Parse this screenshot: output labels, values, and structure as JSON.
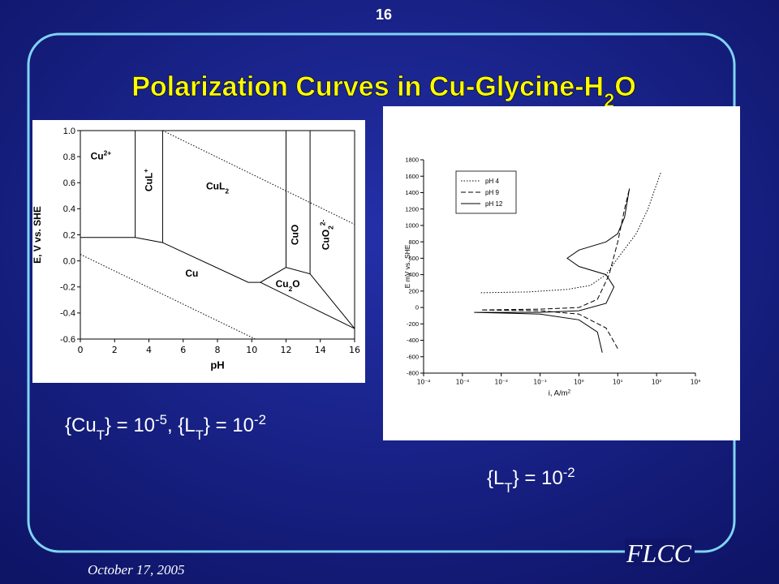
{
  "slide_number": "16",
  "title": [
    {
      "t": "Polarization Curves in Cu-Glycine-H"
    },
    {
      "sub": "2"
    },
    {
      "t": "O"
    }
  ],
  "caption_left": [
    {
      "t": "{Cu"
    },
    {
      "sub": "T"
    },
    {
      "t": "} = 10"
    },
    {
      "sup": "-5"
    },
    {
      "t": ", {L"
    },
    {
      "sub": "T"
    },
    {
      "t": "} = 10"
    },
    {
      "sup": "-2"
    }
  ],
  "caption_right": [
    {
      "t": "{L"
    },
    {
      "sub": "T"
    },
    {
      "t": "} = 10"
    },
    {
      "sup": "-2"
    }
  ],
  "footer": {
    "date": "October 17, 2005",
    "org": "FLCC"
  },
  "chart_data": [
    {
      "type": "phase-diagram",
      "xlabel": "pH",
      "ylabel": "E, V  vs. SHE",
      "xlim": [
        0,
        16
      ],
      "xticks": [
        0,
        2,
        4,
        6,
        8,
        10,
        12,
        14,
        16
      ],
      "ylim": [
        -0.6,
        1.0
      ],
      "yticks": [
        {
          "value": 1.0,
          "label": "1.0"
        },
        0.8,
        0.6,
        0.4,
        0.2,
        {
          "value": 0,
          "label": "0.0"
        },
        -0.2,
        -0.4,
        -0.6
      ],
      "color": "#000000",
      "boundaries": [
        {
          "style": "solid",
          "x": [
            0,
            3.2
          ],
          "y": [
            0.18,
            0.18
          ]
        },
        {
          "style": "solid",
          "x": [
            3.2,
            3.2
          ],
          "y": [
            0.18,
            1.0
          ]
        },
        {
          "style": "solid",
          "x": [
            4.8,
            4.8
          ],
          "y": [
            0.14,
            1.0
          ]
        },
        {
          "style": "solid",
          "x": [
            3.2,
            4.8,
            9.8,
            10.5,
            12.0,
            13.4,
            16
          ],
          "y": [
            0.18,
            0.14,
            -0.165,
            -0.165,
            -0.05,
            -0.1,
            -0.52
          ]
        },
        {
          "style": "solid",
          "x": [
            12.0,
            12.0
          ],
          "y": [
            -0.05,
            1.0
          ]
        },
        {
          "style": "solid",
          "x": [
            13.4,
            13.4
          ],
          "y": [
            -0.1,
            1.0
          ]
        },
        {
          "style": "solid",
          "x": [
            10.5,
            16
          ],
          "y": [
            -0.165,
            -0.52
          ]
        },
        {
          "style": "dotted",
          "x": [
            4.8,
            16
          ],
          "y": [
            1.0,
            0.28
          ]
        },
        {
          "style": "dotted",
          "x": [
            0,
            10.2
          ],
          "y": [
            0.05,
            -0.6
          ]
        }
      ],
      "regions": [
        {
          "label": [
            {
              "t": "Cu"
            },
            {
              "sup": "2+"
            }
          ]
        },
        {
          "label": [
            {
              "t": "CuL"
            },
            {
              "sup": "+"
            }
          ],
          "rotated": true
        },
        {
          "label": [
            {
              "t": "CuL"
            },
            {
              "sub": "2"
            }
          ]
        },
        {
          "label": [
            {
              "t": "CuO"
            }
          ],
          "rotated": true
        },
        {
          "label": [
            {
              "t": "CuO"
            },
            {
              "sub": "2"
            },
            {
              "sup": "2-"
            }
          ],
          "rotated": true
        },
        {
          "label": [
            {
              "t": "Cu"
            }
          ]
        },
        {
          "label": [
            {
              "t": "Cu"
            },
            {
              "sub": "2"
            },
            {
              "t": "O"
            }
          ]
        }
      ]
    },
    {
      "type": "line",
      "xlabel": [
        {
          "t": "i, A/m"
        },
        {
          "sup": "2"
        }
      ],
      "ylabel": "E mV vs. SHE",
      "xscale": "log",
      "xlim": [
        0.0001,
        1000
      ],
      "xticks": [
        {
          "value": 0.0001,
          "label": "10⁻⁴"
        },
        {
          "value": 0.001,
          "label": "10⁻³"
        },
        {
          "value": 0.01,
          "label": "10⁻²"
        },
        {
          "value": 0.1,
          "label": "10⁻¹"
        },
        {
          "value": 1,
          "label": "10⁰"
        },
        {
          "value": 10,
          "label": "10¹"
        },
        {
          "value": 100,
          "label": "10²"
        },
        {
          "value": 1000,
          "label": "10³"
        }
      ],
      "ylim": [
        -800,
        1800
      ],
      "yticks": [
        -800,
        -600,
        -400,
        -200,
        0,
        200,
        400,
        600,
        800,
        1000,
        1200,
        1400,
        1600,
        1800
      ],
      "legend": "upper left",
      "series": [
        {
          "name": "pH 4",
          "color": "#000000",
          "dash": "dotted",
          "x": [
            0.003,
            0.05,
            0.5,
            2,
            5,
            10,
            30,
            60,
            100,
            130
          ],
          "values": [
            180,
            190,
            220,
            270,
            400,
            600,
            900,
            1200,
            1500,
            1650
          ]
        },
        {
          "name": "pH 9",
          "color": "#000000",
          "dash": "dashed",
          "x": [
            10,
            5,
            1,
            0.1,
            0.003,
            0.1,
            1,
            3,
            6,
            10,
            15,
            20
          ],
          "values": [
            -500,
            -250,
            -80,
            -40,
            -30,
            -20,
            0,
            100,
            400,
            800,
            1200,
            1450
          ]
        },
        {
          "name": "pH 12",
          "color": "#000000",
          "dash": "solid",
          "x": [
            4,
            3,
            1,
            0.1,
            0.002,
            0.1,
            1,
            5,
            8,
            5,
            1,
            0.5,
            1,
            5,
            10,
            15,
            20
          ],
          "values": [
            -550,
            -300,
            -150,
            -80,
            -60,
            -60,
            -40,
            50,
            250,
            400,
            500,
            600,
            700,
            800,
            900,
            1100,
            1450
          ]
        }
      ]
    }
  ]
}
